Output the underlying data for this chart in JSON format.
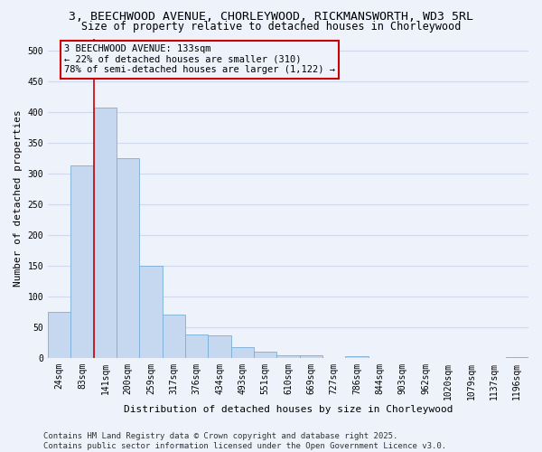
{
  "title": "3, BEECHWOOD AVENUE, CHORLEYWOOD, RICKMANSWORTH, WD3 5RL",
  "subtitle": "Size of property relative to detached houses in Chorleywood",
  "xlabel": "Distribution of detached houses by size in Chorleywood",
  "ylabel": "Number of detached properties",
  "categories": [
    "24sqm",
    "83sqm",
    "141sqm",
    "200sqm",
    "259sqm",
    "317sqm",
    "376sqm",
    "434sqm",
    "493sqm",
    "551sqm",
    "610sqm",
    "669sqm",
    "727sqm",
    "786sqm",
    "844sqm",
    "903sqm",
    "962sqm",
    "1020sqm",
    "1079sqm",
    "1137sqm",
    "1196sqm"
  ],
  "values": [
    75,
    313,
    408,
    325,
    150,
    70,
    38,
    36,
    17,
    10,
    5,
    5,
    0,
    3,
    0,
    0,
    0,
    0,
    0,
    0,
    2
  ],
  "bar_color": "#c5d8f0",
  "bar_edge_color": "#7aaed6",
  "vline_x_index": 2,
  "vline_color": "#cc0000",
  "annotation_line1": "3 BEECHWOOD AVENUE: 133sqm",
  "annotation_line2": "← 22% of detached houses are smaller (310)",
  "annotation_line3": "78% of semi-detached houses are larger (1,122) →",
  "annotation_box_color": "#cc0000",
  "ylim": [
    0,
    520
  ],
  "yticks": [
    0,
    50,
    100,
    150,
    200,
    250,
    300,
    350,
    400,
    450,
    500
  ],
  "background_color": "#eef2fb",
  "grid_color": "#d0d8ee",
  "footer_line1": "Contains HM Land Registry data © Crown copyright and database right 2025.",
  "footer_line2": "Contains public sector information licensed under the Open Government Licence v3.0.",
  "title_fontsize": 9.5,
  "subtitle_fontsize": 8.5,
  "xlabel_fontsize": 8,
  "ylabel_fontsize": 8,
  "tick_fontsize": 7,
  "annotation_fontsize": 7.5,
  "footer_fontsize": 6.5
}
